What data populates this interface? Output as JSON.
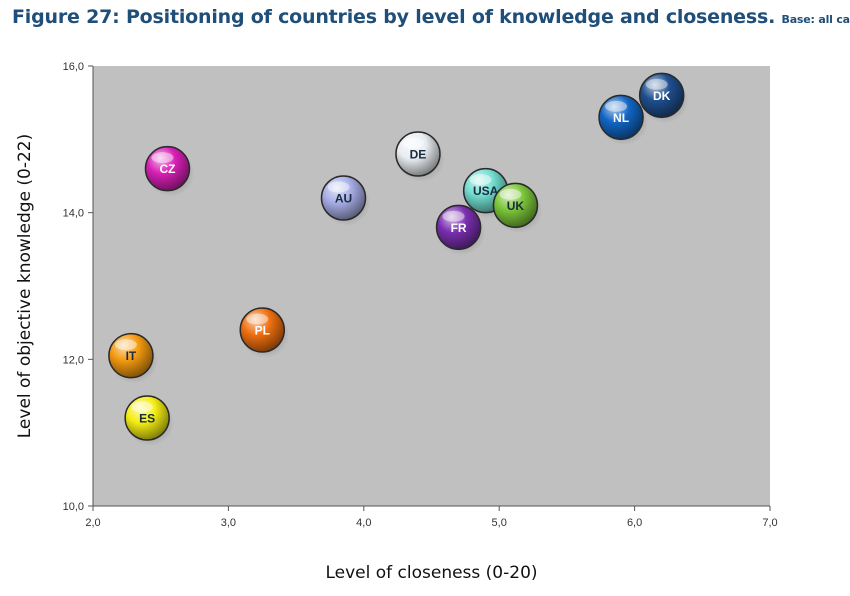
{
  "header": {
    "title": "Figure 27: Positioning of countries by level of knowledge and closeness.",
    "subtitle": "Base: all cases"
  },
  "chart_data": {
    "type": "scatter",
    "title": "Figure 27: Positioning of countries by level of knowledge and closeness.",
    "subtitle": "Base: all cases",
    "xlabel": "Level of closeness (0-20)",
    "ylabel": "Level of objective knowledge (0-22)",
    "xlim": [
      2.0,
      7.0
    ],
    "ylim": [
      10.0,
      16.0
    ],
    "xticks": [
      "2,0",
      "3,0",
      "4,0",
      "5,0",
      "6,0",
      "7,0"
    ],
    "yticks": [
      "10,0",
      "12,0",
      "14,0",
      "16,0"
    ],
    "grid": false,
    "legend": "none",
    "plot_background": "#c0c0c0",
    "points": [
      {
        "label": "DK",
        "x": 6.2,
        "y": 15.6,
        "color": "#1e4f8f",
        "label_color": "#ffffff"
      },
      {
        "label": "NL",
        "x": 5.9,
        "y": 15.3,
        "color": "#1266c4",
        "label_color": "#ffffff"
      },
      {
        "label": "DE",
        "x": 4.4,
        "y": 14.8,
        "color": "#e8edf2",
        "label_color": "#1a2b3c"
      },
      {
        "label": "CZ",
        "x": 2.55,
        "y": 14.6,
        "color": "#d81fb6",
        "label_color": "#ffffff"
      },
      {
        "label": "USA",
        "x": 4.9,
        "y": 14.3,
        "color": "#72ddd0",
        "label_color": "#1a2b3c"
      },
      {
        "label": "AU",
        "x": 3.85,
        "y": 14.2,
        "color": "#a7aee6",
        "label_color": "#1a2b3c"
      },
      {
        "label": "UK",
        "x": 5.12,
        "y": 14.1,
        "color": "#7cc63a",
        "label_color": "#1a2b3c"
      },
      {
        "label": "FR",
        "x": 4.7,
        "y": 13.8,
        "color": "#7a2fb0",
        "label_color": "#ffffff"
      },
      {
        "label": "PL",
        "x": 3.25,
        "y": 12.4,
        "color": "#ef6f0f",
        "label_color": "#ffffff"
      },
      {
        "label": "IT",
        "x": 2.28,
        "y": 12.05,
        "color": "#f39a10",
        "label_color": "#1a2b3c"
      },
      {
        "label": "ES",
        "x": 2.4,
        "y": 11.2,
        "color": "#f4ee14",
        "label_color": "#1a2b3c"
      }
    ]
  }
}
